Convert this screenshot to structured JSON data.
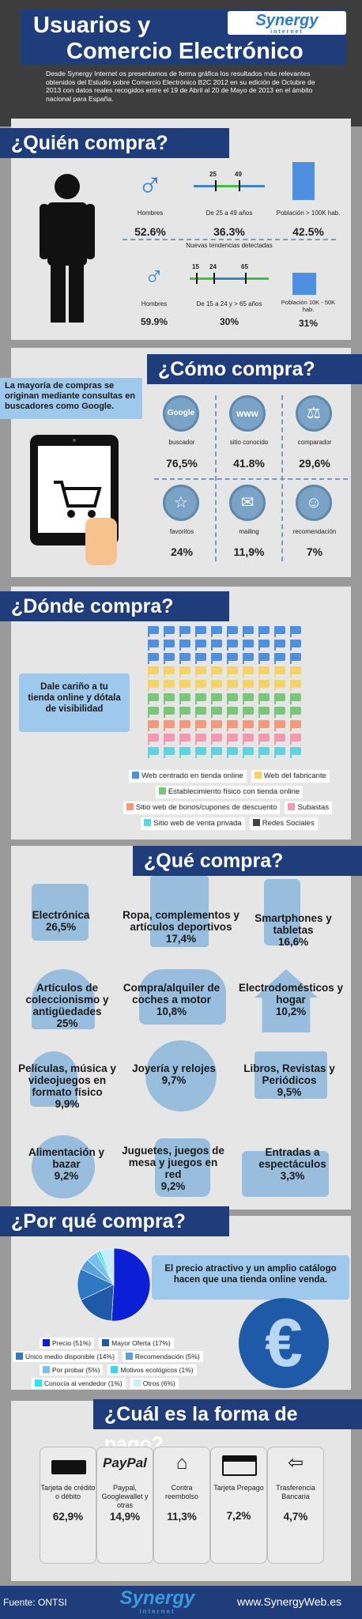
{
  "header": {
    "title_line1": "Usuarios  y",
    "title_line2": "Comercio Electrónico",
    "logo": "Synergy",
    "logo_sub": "internet",
    "intro": "Desde Synergy Internet os presentamos de forma gráfica los resultados más relevantes obtenidos del Estudio sobre Comercio Electrónico B2C 2012 en su edición de Octubre de 2013 con datos reales recogidos entre el 19 de Abril al 20 de Mayo de 2013 en el ámbito nacional para España."
  },
  "quien": {
    "title": "¿Quién compra?",
    "row1": [
      {
        "label": "Hombres",
        "value": "52.6%"
      },
      {
        "label": "De 25 a 49 años",
        "value": "36.3%",
        "tick_a": "25",
        "tick_b": "49"
      },
      {
        "label": "Población > 100K hab.",
        "value": "42.5%"
      }
    ],
    "trends": "Nuevas tendencias detectadas",
    "row2": [
      {
        "label": "Hombres",
        "value": "59.9%"
      },
      {
        "label": "De 15 a 24 y > 65 años",
        "value": "30%",
        "tick_a": "15",
        "tick_b": "24",
        "tick_c": "65"
      },
      {
        "label": "Población 10K - 50K hab.",
        "value": "31%"
      }
    ]
  },
  "como": {
    "title": "¿Cómo compra?",
    "note": "La mayoría de compras se originan mediante consultas en buscadores como Google.",
    "items": [
      {
        "icon": "Google",
        "label": "buscador",
        "value": "76,5%"
      },
      {
        "icon": "www",
        "label": "sitio conocido",
        "value": "41.8%"
      },
      {
        "icon": "",
        "label": "comparador",
        "value": "29,6%"
      },
      {
        "icon": "",
        "label": "favoritos",
        "value": "24%"
      },
      {
        "icon": "",
        "label": "mailing",
        "value": "11,9%"
      },
      {
        "icon": "",
        "label": "recomendación",
        "value": "7%"
      }
    ]
  },
  "donde": {
    "title": "¿Dónde compra?",
    "note": "Dale cariño a tu tienda online y dótala de visibilidad",
    "legend": [
      {
        "label": "Web centrado en tienda online",
        "color": "#4f8fe0"
      },
      {
        "label": "Web del fabricante",
        "color": "#f5d36a"
      },
      {
        "label": "Establecimiento físico con tienda online",
        "color": "#7ac77a"
      },
      {
        "label": "Sitio web de bonos/cupones de descuento",
        "color": "#f29a7a"
      },
      {
        "label": "Subastas",
        "color": "#f29ab0"
      },
      {
        "label": "Sitio web de venta privada",
        "color": "#5fd3e0"
      },
      {
        "label": "Redes Sociales",
        "color": "#444444"
      }
    ],
    "row_colors": [
      "#4f8fe0",
      "#4f8fe0",
      "#4f8fe0",
      "#f5d36a",
      "#f5d36a",
      "#7ac77a",
      "#7ac77a",
      "#f29a7a",
      "#f29ab0",
      "#5fd3e0"
    ]
  },
  "que": {
    "title": "¿Qué compra?",
    "items": [
      {
        "name": "Electrónica",
        "value": "26,5%"
      },
      {
        "name": "Ropa, complementos y artículos deportivos",
        "value": "17,4%"
      },
      {
        "name": "Smartphones y tabletas",
        "value": "16,6%"
      },
      {
        "name": "Artículos de coleccionismo y antigüedades",
        "value": "25%"
      },
      {
        "name": "Compra/alquiler de coches a motor",
        "value": "10,8%"
      },
      {
        "name": "Electrodomésticos y hogar",
        "value": "10,2%"
      },
      {
        "name": "Películas, música y videojuegos en formato físico",
        "value": "9,9%"
      },
      {
        "name": "Joyería y relojes",
        "value": "9,7%"
      },
      {
        "name": "Libros, Revistas y Periódicos",
        "value": "9,5%"
      },
      {
        "name": "Alimentación y bazar",
        "value": "9,2%"
      },
      {
        "name": "Juguetes, juegos de mesa y juegos en red",
        "value": "9,2%"
      },
      {
        "name": "Entradas a espectáculos",
        "value": "3,3%"
      }
    ]
  },
  "porque": {
    "title": "¿Por qué compra?",
    "note": "El precio atractivo y un amplio catálogo hacen que una tienda online venda.",
    "chart_data": {
      "type": "pie",
      "series": [
        {
          "name": "Precio (51%)",
          "value": 51,
          "color": "#0a1fd6"
        },
        {
          "name": "Mayor Oferta (17%)",
          "value": 17,
          "color": "#1f5aa8"
        },
        {
          "name": "Único medio disponible (14%)",
          "value": 14,
          "color": "#2e78c4"
        },
        {
          "name": "Recomendación (5%)",
          "value": 5,
          "color": "#5aa0dc"
        },
        {
          "name": "Por probar (5%)",
          "value": 5,
          "color": "#7ac0ee"
        },
        {
          "name": "Motivos ecológicos (1%)",
          "value": 1,
          "color": "#3fd6ec"
        },
        {
          "name": "Conocía al vendedor (1%)",
          "value": 1,
          "color": "#2ae6f4"
        },
        {
          "name": "Otros (6%)",
          "value": 6,
          "color": "#c8ecf8"
        }
      ]
    }
  },
  "pago": {
    "title": "¿Cuál es la forma de pago?",
    "items": [
      {
        "label": "Tarjeta de crédito o débito",
        "value": "62,9%"
      },
      {
        "label": "Paypal, Googlewallet y otras",
        "value": "14,9%",
        "brand": "PayPal"
      },
      {
        "label": "Contra reembolso",
        "value": "11,3%"
      },
      {
        "label": "Tarjeta Prepago",
        "value": "7,2%"
      },
      {
        "label": "Trasferencia Bancaria",
        "value": "4,7%"
      }
    ]
  },
  "footer": {
    "source": "Fuente: ONTSI",
    "logo": "Synergy",
    "logo_sub": "internet",
    "url": "www.SynergyWeb.es"
  }
}
